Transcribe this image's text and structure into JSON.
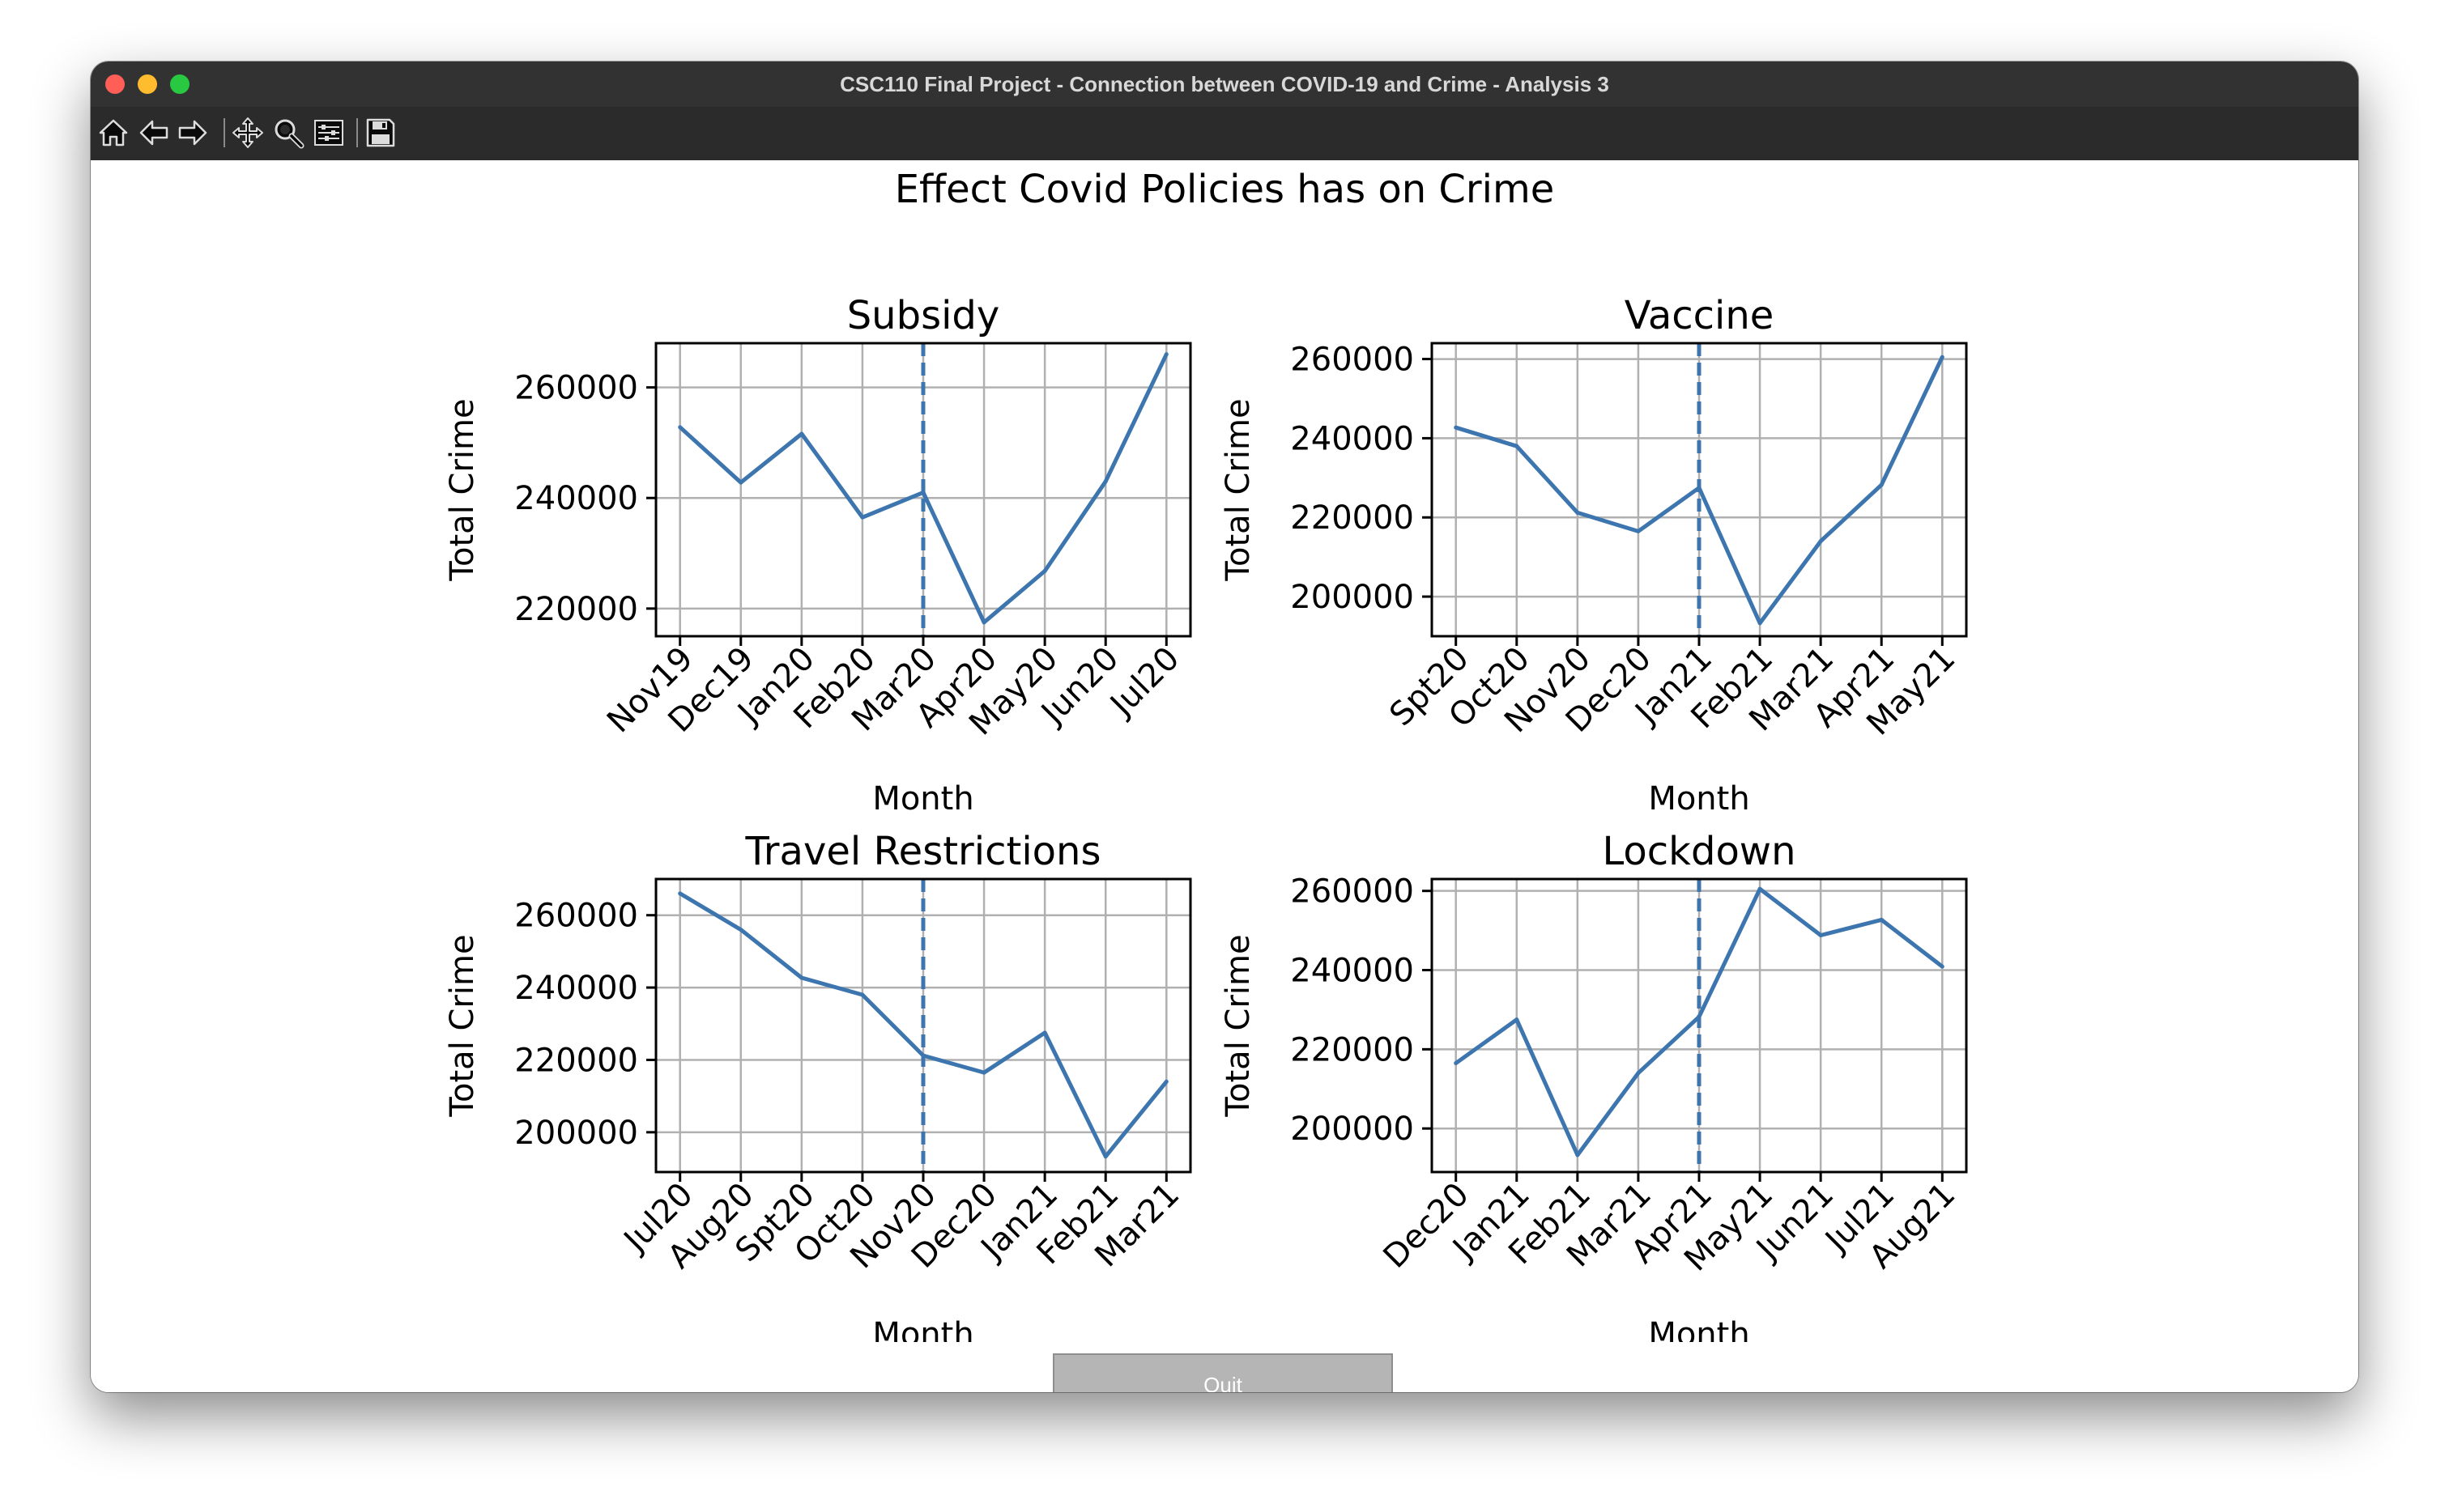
{
  "window": {
    "title": "CSC110 Final Project - Connection between COVID-19 and Crime - Analysis 3"
  },
  "toolbar": {
    "buttons": [
      "home-icon",
      "back-arrow-icon",
      "forward-arrow-icon",
      "pan-icon",
      "zoom-icon",
      "configure-subplots-icon",
      "save-icon"
    ]
  },
  "figure": {
    "suptitle": "Effect Covid Policies has on Crime"
  },
  "quit_label": "Quit",
  "colors": {
    "line": "#3d76af",
    "grid": "#b0b0b0"
  },
  "chart_data": [
    {
      "type": "line",
      "title": "Subsidy",
      "xlabel": "Month",
      "ylabel": "Total Crime",
      "categories": [
        "Nov19",
        "Dec19",
        "Jan20",
        "Feb20",
        "Mar20",
        "Apr20",
        "May20",
        "Jun20",
        "Jul20"
      ],
      "values": [
        252800,
        242800,
        251600,
        236500,
        241000,
        217500,
        226800,
        243000,
        266000
      ],
      "ylim": [
        215000,
        268000
      ],
      "yticks": [
        220000,
        240000,
        260000
      ],
      "vline_category": "Mar20",
      "grid": true
    },
    {
      "type": "line",
      "title": "Vaccine",
      "xlabel": "Month",
      "ylabel": "Total Crime",
      "categories": [
        "Spt20",
        "Oct20",
        "Nov20",
        "Dec20",
        "Jan21",
        "Feb21",
        "Mar21",
        "Apr21",
        "May21"
      ],
      "values": [
        242700,
        238000,
        221200,
        216500,
        227500,
        193300,
        214000,
        228200,
        260500
      ],
      "ylim": [
        190000,
        264000
      ],
      "yticks": [
        200000,
        220000,
        240000,
        260000
      ],
      "vline_category": "Jan21",
      "grid": true
    },
    {
      "type": "line",
      "title": "Travel Restrictions",
      "xlabel": "Month",
      "ylabel": "Total Crime",
      "categories": [
        "Jul20",
        "Aug20",
        "Spt20",
        "Oct20",
        "Nov20",
        "Dec20",
        "Jan21",
        "Feb21",
        "Mar21"
      ],
      "values": [
        266000,
        256000,
        242700,
        238000,
        221200,
        216500,
        227500,
        193300,
        214000
      ],
      "ylim": [
        189000,
        270000
      ],
      "yticks": [
        200000,
        220000,
        240000,
        260000
      ],
      "vline_category": "Nov20",
      "grid": true
    },
    {
      "type": "line",
      "title": "Lockdown",
      "xlabel": "Month",
      "ylabel": "Total Crime",
      "categories": [
        "Dec20",
        "Jan21",
        "Feb21",
        "Mar21",
        "Apr21",
        "May21",
        "Jun21",
        "Jul21",
        "Aug21"
      ],
      "values": [
        216500,
        227500,
        193300,
        214000,
        228200,
        260500,
        248800,
        252700,
        240900
      ],
      "ylim": [
        189000,
        263000
      ],
      "yticks": [
        200000,
        220000,
        240000,
        260000
      ],
      "vline_category": "Apr21",
      "grid": true
    }
  ]
}
